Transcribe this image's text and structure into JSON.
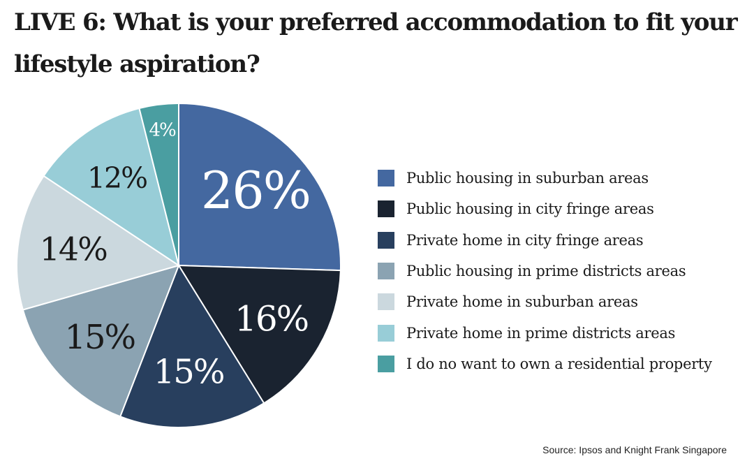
{
  "title": "LIVE 6: What is your preferred accommodation to fit your lifestyle aspiration?",
  "source": "Source: Ipsos and Knight Frank Singapore",
  "chart_data": {
    "type": "pie",
    "title": "LIVE 6: What is your preferred accommodation to fit your lifestyle aspiration?",
    "unit": "%",
    "legend_position": "right",
    "slices": [
      {
        "label": "Public housing in suburban areas",
        "value": 26,
        "display": "26%",
        "color": "#4468a0",
        "text_color": "#ffffff"
      },
      {
        "label": "Public housing in city fringe areas",
        "value": 16,
        "display": "16%",
        "color": "#1a2330",
        "text_color": "#ffffff"
      },
      {
        "label": "Private home in city fringe areas",
        "value": 15,
        "display": "15%",
        "color": "#283f5e",
        "text_color": "#ffffff"
      },
      {
        "label": "Public housing in prime districts areas",
        "value": 15,
        "display": "15%",
        "color": "#8ba3b2",
        "text_color": "#1a1a1a"
      },
      {
        "label": "Private home in suburban areas",
        "value": 14,
        "display": "14%",
        "color": "#cbd8de",
        "text_color": "#1a1a1a"
      },
      {
        "label": "Private home in prime districts areas",
        "value": 12,
        "display": "12%",
        "color": "#98cdd7",
        "text_color": "#1a1a1a"
      },
      {
        "label": "I do no want to own a residential property",
        "value": 4,
        "display": "4%",
        "color": "#4a9ea1",
        "text_color": "#ffffff"
      }
    ]
  }
}
